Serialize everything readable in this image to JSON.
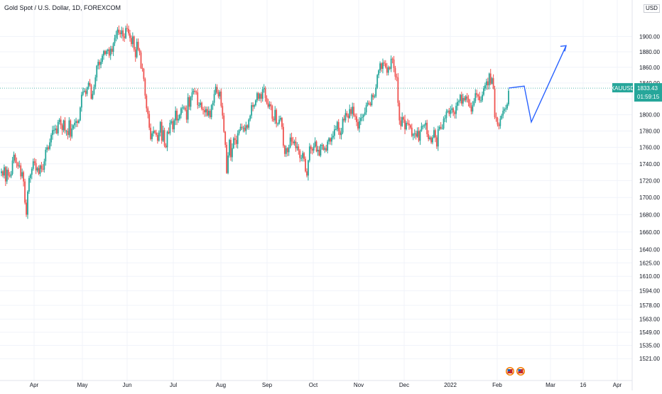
{
  "chart_data": {
    "type": "candlestick",
    "title": "Gold Spot / U.S. Dollar, 1D, FOREXCOM",
    "currency": "USD",
    "yscale": "log",
    "ylim": [
      1510,
      1920
    ],
    "y_ticks": [
      "1900.00",
      "1880.00",
      "1860.00",
      "1840.00",
      "1820.00",
      "1800.00",
      "1780.00",
      "1760.00",
      "1740.00",
      "1720.00",
      "1700.00",
      "1680.00",
      "1660.00",
      "1640.00",
      "1625.00",
      "1610.00",
      "1594.00",
      "1578.00",
      "1563.00",
      "1549.00",
      "1535.00",
      "1521.00"
    ],
    "x_ticks": [
      "Apr",
      "May",
      "Jun",
      "Jul",
      "Aug",
      "Sep",
      "Oct",
      "Nov",
      "Dec",
      "2022",
      "Feb",
      "Mar",
      "16",
      "Apr"
    ],
    "price_line": {
      "symbol": "XAUUSD",
      "value": "1833.43",
      "countdown": "01:59:15"
    },
    "colors": {
      "up": "#26a69a",
      "down": "#ef5350",
      "projection": "#2962ff",
      "price_line": "#26a69a",
      "grid": "#f0f3fa"
    },
    "series_closes": [
      1731,
      1726,
      1736,
      1719,
      1733,
      1726,
      1725,
      1728,
      1744,
      1751,
      1742,
      1741,
      1737,
      1738,
      1725,
      1730,
      1719,
      1694,
      1680,
      1707,
      1723,
      1727,
      1734,
      1743,
      1741,
      1732,
      1735,
      1728,
      1738,
      1734,
      1733,
      1743,
      1757,
      1760,
      1758,
      1766,
      1775,
      1781,
      1781,
      1783,
      1777,
      1791,
      1794,
      1787,
      1781,
      1793,
      1780,
      1780,
      1775,
      1793,
      1773,
      1783,
      1787,
      1790,
      1792,
      1790,
      1793,
      1809,
      1825,
      1829,
      1830,
      1826,
      1834,
      1840,
      1837,
      1820,
      1826,
      1835,
      1847,
      1862,
      1867,
      1863,
      1867,
      1875,
      1881,
      1877,
      1881,
      1883,
      1875,
      1884,
      1880,
      1891,
      1898,
      1902,
      1909,
      1905,
      1903,
      1908,
      1900,
      1898,
      1911,
      1910,
      1904,
      1898,
      1890,
      1900,
      1883,
      1873,
      1893,
      1883,
      1879,
      1859,
      1858,
      1845,
      1824,
      1808,
      1801,
      1784,
      1770,
      1777,
      1780,
      1778,
      1775,
      1768,
      1778,
      1791,
      1768,
      1781,
      1762,
      1760,
      1779,
      1777,
      1790,
      1792,
      1782,
      1793,
      1805,
      1793,
      1795,
      1800,
      1808,
      1809,
      1809,
      1806,
      1794,
      1822,
      1810,
      1822,
      1828,
      1830,
      1829,
      1828,
      1812,
      1812,
      1815,
      1807,
      1806,
      1803,
      1807,
      1799,
      1805,
      1797,
      1812,
      1815,
      1826,
      1835,
      1828,
      1823,
      1829,
      1811,
      1799,
      1779,
      1763,
      1729,
      1750,
      1769,
      1748,
      1759,
      1771,
      1769,
      1764,
      1777,
      1781,
      1785,
      1784,
      1784,
      1780,
      1787,
      1784,
      1794,
      1799,
      1812,
      1810,
      1812,
      1818,
      1827,
      1820,
      1826,
      1820,
      1832,
      1833,
      1821,
      1815,
      1810,
      1813,
      1811,
      1795,
      1793,
      1806,
      1789,
      1789,
      1794,
      1796,
      1785,
      1762,
      1752,
      1759,
      1754,
      1760,
      1772,
      1767,
      1765,
      1767,
      1759,
      1761,
      1756,
      1747,
      1747,
      1753,
      1746,
      1731,
      1726,
      1744,
      1761,
      1758,
      1756,
      1761,
      1767,
      1755,
      1757,
      1750,
      1763,
      1763,
      1757,
      1759,
      1756,
      1767,
      1771,
      1767,
      1772,
      1774,
      1782,
      1782,
      1791,
      1780,
      1775,
      1778,
      1795,
      1793,
      1802,
      1799,
      1796,
      1807,
      1801,
      1810,
      1799,
      1798,
      1791,
      1783,
      1792,
      1796,
      1797,
      1800,
      1803,
      1812,
      1815,
      1814,
      1812,
      1825,
      1822,
      1823,
      1834,
      1850,
      1856,
      1865,
      1858,
      1866,
      1865,
      1860,
      1853,
      1860,
      1858,
      1871,
      1870,
      1859,
      1848,
      1847,
      1815,
      1793,
      1786,
      1797,
      1794,
      1782,
      1790,
      1789,
      1787,
      1784,
      1774,
      1776,
      1777,
      1773,
      1780,
      1768,
      1780,
      1786,
      1786,
      1787,
      1790,
      1776,
      1770,
      1772,
      1766,
      1772,
      1781,
      1772,
      1761,
      1782,
      1785,
      1783,
      1783,
      1795,
      1796,
      1804,
      1805,
      1801,
      1806,
      1808,
      1803,
      1801,
      1811,
      1816,
      1817,
      1825,
      1814,
      1821,
      1818,
      1823,
      1820,
      1815,
      1810,
      1804,
      1812,
      1817,
      1827,
      1825,
      1823,
      1818,
      1818,
      1825,
      1833,
      1837,
      1842,
      1837,
      1852,
      1839,
      1846,
      1833,
      1797,
      1796,
      1788,
      1786,
      1795,
      1799,
      1805,
      1807,
      1808,
      1813,
      1830
    ]
  }
}
